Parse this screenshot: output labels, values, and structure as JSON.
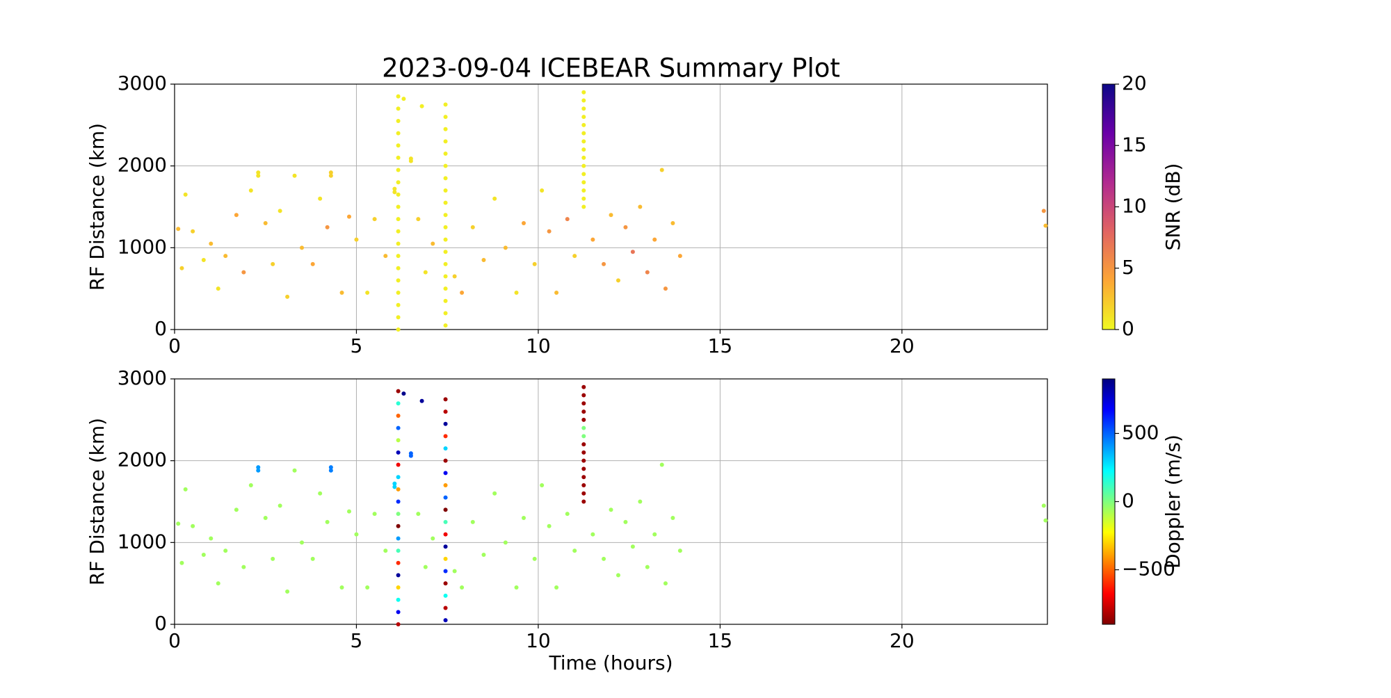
{
  "chart_data": [
    {
      "type": "scatter",
      "title": "2023-09-04 ICEBEAR Summary Plot",
      "ylabel": "RF Distance (km)",
      "xlim": [
        0,
        24
      ],
      "ylim": [
        0,
        3000
      ],
      "xticks": [
        0,
        5,
        10,
        15,
        20
      ],
      "yticks": [
        0,
        1000,
        2000,
        3000
      ],
      "grid": true,
      "colorbar": {
        "label": "SNR (dB)",
        "lim": [
          0,
          20
        ],
        "ticks": [
          0,
          5,
          10,
          15,
          20
        ],
        "colors": [
          "#f0f921",
          "#fca636",
          "#e16462",
          "#b12a90",
          "#6a00a8",
          "#0d0887"
        ]
      },
      "x": [
        0.1,
        0.2,
        0.3,
        0.5,
        0.8,
        1.0,
        1.2,
        1.4,
        1.7,
        1.9,
        2.1,
        2.3,
        2.3,
        2.5,
        2.7,
        2.9,
        3.1,
        3.3,
        3.5,
        3.8,
        4.0,
        4.2,
        4.3,
        4.3,
        4.6,
        4.8,
        5.0,
        5.3,
        5.5,
        5.8,
        6.05,
        6.05,
        6.5,
        6.5,
        6.7,
        6.9,
        7.1,
        7.7,
        7.9,
        8.2,
        8.5,
        8.8,
        9.1,
        9.4,
        9.6,
        9.9,
        10.1,
        10.3,
        10.5,
        10.8,
        11.0,
        11.5,
        11.8,
        12.0,
        12.2,
        12.4,
        12.6,
        12.8,
        13.0,
        13.2,
        13.4,
        13.5,
        13.7,
        13.9,
        23.9,
        23.95,
        6.15,
        6.15,
        6.15,
        6.15,
        6.15,
        6.15,
        6.15,
        6.15,
        6.15,
        6.15,
        6.15,
        6.15,
        6.15,
        6.15,
        6.15,
        6.15,
        6.15,
        6.15,
        6.15,
        6.15,
        7.45,
        7.45,
        7.45,
        7.45,
        7.45,
        7.45,
        7.45,
        7.45,
        7.45,
        7.45,
        7.45,
        7.45,
        7.45,
        7.45,
        7.45,
        7.45,
        7.45,
        7.45,
        7.45,
        11.25,
        11.25,
        11.25,
        11.25,
        11.25,
        11.25,
        11.25,
        11.25,
        11.25,
        11.25,
        11.25,
        11.25,
        11.25,
        11.25,
        11.25,
        6.3,
        6.8
      ],
      "values": [
        1230,
        750,
        1650,
        1200,
        850,
        1050,
        500,
        900,
        1400,
        700,
        1700,
        1880,
        1920,
        1300,
        800,
        1450,
        400,
        1880,
        1000,
        800,
        1600,
        1250,
        1880,
        1920,
        450,
        1380,
        1100,
        450,
        1350,
        900,
        1680,
        1720,
        2060,
        2090,
        1350,
        700,
        1050,
        650,
        450,
        1250,
        850,
        1600,
        1000,
        450,
        1300,
        800,
        1700,
        1200,
        450,
        1350,
        900,
        1100,
        800,
        1400,
        600,
        1250,
        950,
        1500,
        700,
        1100,
        1950,
        500,
        1300,
        900,
        1450,
        1270,
        0,
        150,
        300,
        450,
        600,
        750,
        900,
        1050,
        1200,
        1350,
        1500,
        1650,
        1800,
        1950,
        2100,
        2250,
        2400,
        2550,
        2700,
        2850,
        50,
        200,
        350,
        500,
        650,
        800,
        950,
        1100,
        1250,
        1400,
        1550,
        1700,
        1850,
        2000,
        2150,
        2300,
        2450,
        2600,
        2750,
        1500,
        1600,
        1700,
        1800,
        1900,
        2000,
        2100,
        2200,
        2300,
        2400,
        2500,
        2600,
        2700,
        2800,
        2900,
        2820,
        2730
      ],
      "c": [
        3,
        2,
        1,
        2,
        1,
        3,
        1,
        3,
        4,
        5,
        1,
        1,
        1,
        3,
        2,
        1,
        2,
        1,
        3,
        4,
        1,
        5,
        2,
        2,
        3,
        4,
        2,
        1,
        2,
        3,
        1,
        1,
        1,
        1,
        2,
        1,
        3,
        2,
        4,
        2,
        3,
        1,
        3,
        1,
        4,
        2,
        1,
        5,
        3,
        6,
        2,
        4,
        5,
        3,
        2,
        5,
        7,
        3,
        6,
        4,
        2,
        5,
        3,
        4,
        5,
        3,
        0.5,
        0.5,
        0.5,
        0.5,
        0.5,
        0.5,
        0.5,
        0.5,
        0.5,
        0.5,
        0.5,
        0.5,
        0.5,
        0.5,
        0.5,
        0.5,
        0.5,
        0.5,
        0.5,
        0.5,
        0.5,
        0.5,
        0.5,
        0.5,
        0.5,
        0.5,
        0.5,
        0.5,
        0.5,
        0.5,
        0.5,
        0.5,
        0.5,
        0.5,
        0.5,
        0.5,
        0.5,
        0.5,
        0.5,
        0.5,
        0.5,
        0.5,
        0.5,
        0.5,
        0.5,
        0.5,
        0.5,
        0.5,
        0.5,
        0.5,
        0.5,
        0.5,
        0.5,
        0.5,
        0.5,
        0.5
      ]
    },
    {
      "type": "scatter",
      "xlabel": "Time (hours)",
      "ylabel": "RF Distance (km)",
      "xlim": [
        0,
        24
      ],
      "ylim": [
        0,
        3000
      ],
      "xticks": [
        0,
        5,
        10,
        15,
        20
      ],
      "yticks": [
        0,
        1000,
        2000,
        3000
      ],
      "grid": true,
      "colorbar": {
        "label": "Doppler (m/s)",
        "lim": [
          -900,
          900
        ],
        "ticks": [
          {
            "value": -500,
            "label": "−500"
          },
          0,
          500
        ],
        "colors": [
          "#7f0000",
          "#ff0000",
          "#ff7f00",
          "#ffff00",
          "#7fff7f",
          "#00ffff",
          "#007fff",
          "#0000ff",
          "#00007f"
        ]
      },
      "x": [
        0.1,
        0.2,
        0.3,
        0.5,
        0.8,
        1.0,
        1.2,
        1.4,
        1.7,
        1.9,
        2.1,
        2.3,
        2.3,
        2.5,
        2.7,
        2.9,
        3.1,
        3.3,
        3.5,
        3.8,
        4.0,
        4.2,
        4.3,
        4.3,
        4.6,
        4.8,
        5.0,
        5.3,
        5.5,
        5.8,
        6.05,
        6.05,
        6.5,
        6.5,
        6.7,
        6.9,
        7.1,
        7.7,
        7.9,
        8.2,
        8.5,
        8.8,
        9.1,
        9.4,
        9.6,
        9.9,
        10.1,
        10.3,
        10.5,
        10.8,
        11.0,
        11.5,
        11.8,
        12.0,
        12.2,
        12.4,
        12.6,
        12.8,
        13.0,
        13.2,
        13.4,
        13.5,
        13.7,
        13.9,
        23.9,
        23.95,
        6.15,
        6.15,
        6.15,
        6.15,
        6.15,
        6.15,
        6.15,
        6.15,
        6.15,
        6.15,
        6.15,
        6.15,
        6.15,
        6.15,
        6.15,
        6.15,
        6.15,
        6.15,
        6.15,
        6.15,
        7.45,
        7.45,
        7.45,
        7.45,
        7.45,
        7.45,
        7.45,
        7.45,
        7.45,
        7.45,
        7.45,
        7.45,
        7.45,
        7.45,
        7.45,
        7.45,
        7.45,
        7.45,
        7.45,
        11.25,
        11.25,
        11.25,
        11.25,
        11.25,
        11.25,
        11.25,
        11.25,
        11.25,
        11.25,
        11.25,
        11.25,
        11.25,
        11.25,
        11.25,
        6.3,
        6.8
      ],
      "values": [
        1230,
        750,
        1650,
        1200,
        850,
        1050,
        500,
        900,
        1400,
        700,
        1700,
        1880,
        1920,
        1300,
        800,
        1450,
        400,
        1880,
        1000,
        800,
        1600,
        1250,
        1880,
        1920,
        450,
        1380,
        1100,
        450,
        1350,
        900,
        1680,
        1720,
        2060,
        2090,
        1350,
        700,
        1050,
        650,
        450,
        1250,
        850,
        1600,
        1000,
        450,
        1300,
        800,
        1700,
        1200,
        450,
        1350,
        900,
        1100,
        800,
        1400,
        600,
        1250,
        950,
        1500,
        700,
        1100,
        1950,
        500,
        1300,
        900,
        1450,
        1270,
        0,
        150,
        300,
        450,
        600,
        750,
        900,
        1050,
        1200,
        1350,
        1500,
        1650,
        1800,
        1950,
        2100,
        2250,
        2400,
        2550,
        2700,
        2850,
        50,
        200,
        350,
        500,
        650,
        800,
        950,
        1100,
        1250,
        1400,
        1550,
        1700,
        1850,
        2000,
        2150,
        2300,
        2450,
        2600,
        2750,
        1500,
        1600,
        1700,
        1800,
        1900,
        2000,
        2100,
        2200,
        2300,
        2400,
        2500,
        2600,
        2700,
        2800,
        2900,
        2820,
        2730
      ],
      "c": [
        -60,
        -60,
        -60,
        -60,
        -60,
        -60,
        -60,
        -60,
        -60,
        -60,
        -60,
        400,
        400,
        -60,
        -60,
        -60,
        -60,
        -60,
        -60,
        -60,
        -60,
        -60,
        450,
        450,
        -60,
        -60,
        -60,
        -60,
        -60,
        -60,
        300,
        300,
        500,
        500,
        -60,
        -60,
        -60,
        -60,
        -60,
        -60,
        -60,
        -60,
        -60,
        -60,
        -60,
        -60,
        -60,
        -60,
        -60,
        -60,
        -60,
        -60,
        -60,
        -60,
        -60,
        -60,
        -60,
        -60,
        -60,
        -60,
        -60,
        -60,
        -60,
        -60,
        -60,
        -60,
        -800,
        700,
        200,
        -300,
        850,
        -600,
        100,
        400,
        -900,
        0,
        600,
        -400,
        300,
        -700,
        800,
        -100,
        500,
        -500,
        150,
        -850,
        800,
        -800,
        200,
        -850,
        600,
        -300,
        850,
        -700,
        100,
        -900,
        500,
        -400,
        700,
        -850,
        300,
        -600,
        850,
        -800,
        -850,
        -850,
        -850,
        -850,
        -850,
        -850,
        -850,
        -850,
        -850,
        0,
        0,
        -850,
        -850,
        -850,
        -850,
        -850,
        880,
        850
      ]
    }
  ]
}
